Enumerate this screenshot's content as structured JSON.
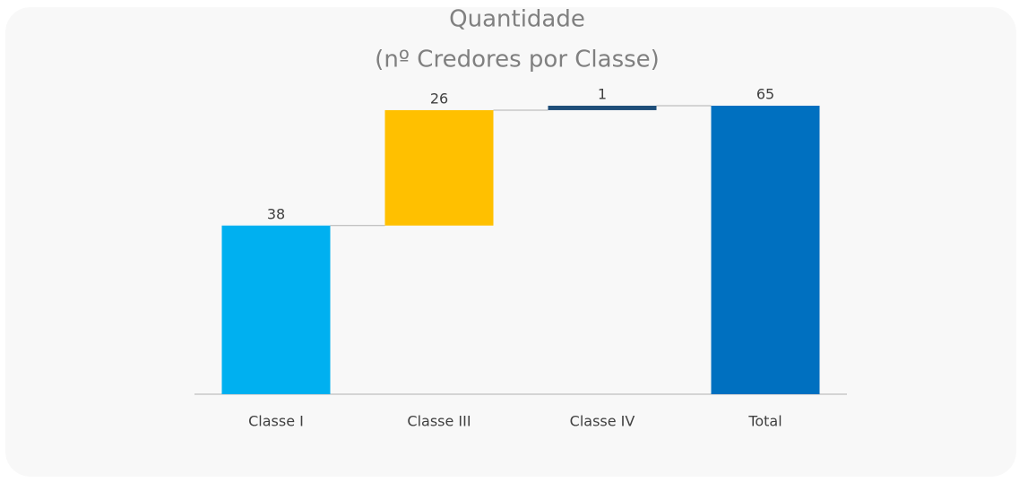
{
  "chart_data": {
    "type": "waterfall",
    "title": "Quantidade",
    "subtitle": "(nº Credores por Classe)",
    "categories": [
      "Classe I",
      "Classe III",
      "Classe IV",
      "Total"
    ],
    "values": [
      38,
      26,
      1,
      65
    ],
    "is_total": [
      false,
      false,
      false,
      true
    ],
    "colors": [
      "#00b0f0",
      "#ffc000",
      "#1f4e79",
      "#0070c0"
    ]
  }
}
